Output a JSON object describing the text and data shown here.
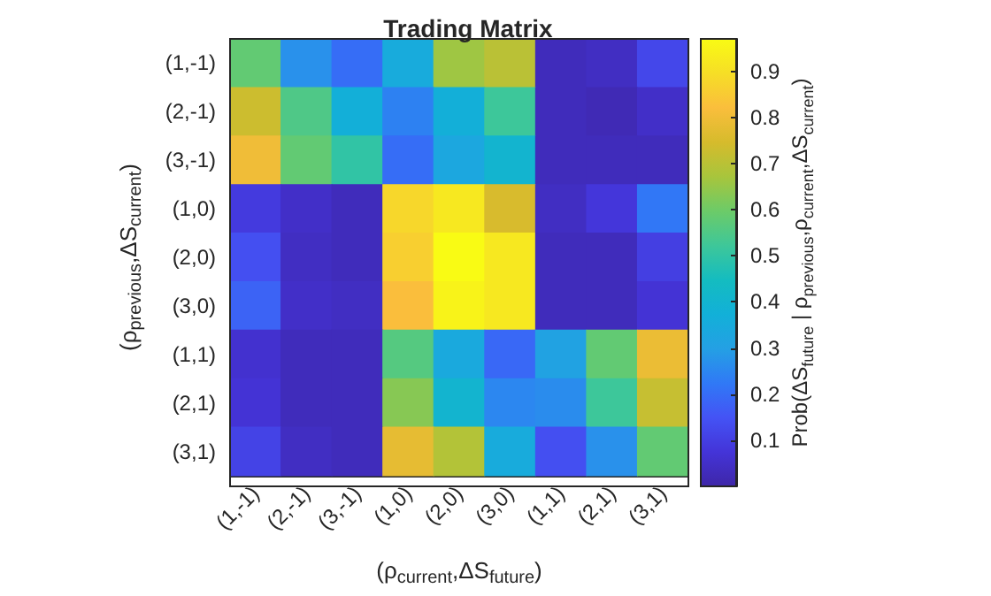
{
  "chart_data": {
    "type": "heatmap",
    "title": "Trading Matrix",
    "xlabel": "(ρ$_{current}$,ΔS$_{future}$)",
    "ylabel": "(ρ$_{previous}$,ΔS$_{current}$)",
    "clabel": "Prob(ΔS$_{future}$ | ρ$_{previous}$,ρ$_{current}$,ΔS$_{current}$)",
    "categories": [
      "(1,-1)",
      "(2,-1)",
      "(3,-1)",
      "(1,0)",
      "(2,0)",
      "(3,0)",
      "(1,1)",
      "(2,1)",
      "(3,1)"
    ],
    "y_categories": [
      "(1,-1)",
      "(2,-1)",
      "(3,-1)",
      "(1,0)",
      "(2,0)",
      "(3,0)",
      "(1,1)",
      "(2,1)",
      "(3,1)"
    ],
    "cells": [
      [
        0.58,
        0.27,
        0.2,
        0.35,
        0.66,
        0.7,
        0.03,
        0.04,
        0.12
      ],
      [
        0.73,
        0.55,
        0.37,
        0.24,
        0.37,
        0.52,
        0.03,
        0.02,
        0.05
      ],
      [
        0.8,
        0.58,
        0.5,
        0.2,
        0.33,
        0.4,
        0.03,
        0.03,
        0.03
      ],
      [
        0.09,
        0.05,
        0.03,
        0.88,
        0.92,
        0.75,
        0.04,
        0.08,
        0.22
      ],
      [
        0.14,
        0.04,
        0.03,
        0.86,
        0.97,
        0.92,
        0.03,
        0.03,
        0.1
      ],
      [
        0.18,
        0.05,
        0.04,
        0.82,
        0.95,
        0.92,
        0.03,
        0.03,
        0.07
      ],
      [
        0.06,
        0.03,
        0.03,
        0.56,
        0.34,
        0.19,
        0.31,
        0.58,
        0.79
      ],
      [
        0.07,
        0.03,
        0.03,
        0.63,
        0.4,
        0.25,
        0.26,
        0.52,
        0.72
      ],
      [
        0.11,
        0.04,
        0.03,
        0.78,
        0.69,
        0.35,
        0.14,
        0.27,
        0.58
      ]
    ],
    "clim": [
      0,
      0.97
    ],
    "cticks": [
      0.1,
      0.2,
      0.3,
      0.4,
      0.5,
      0.6,
      0.7,
      0.8,
      0.9
    ]
  }
}
